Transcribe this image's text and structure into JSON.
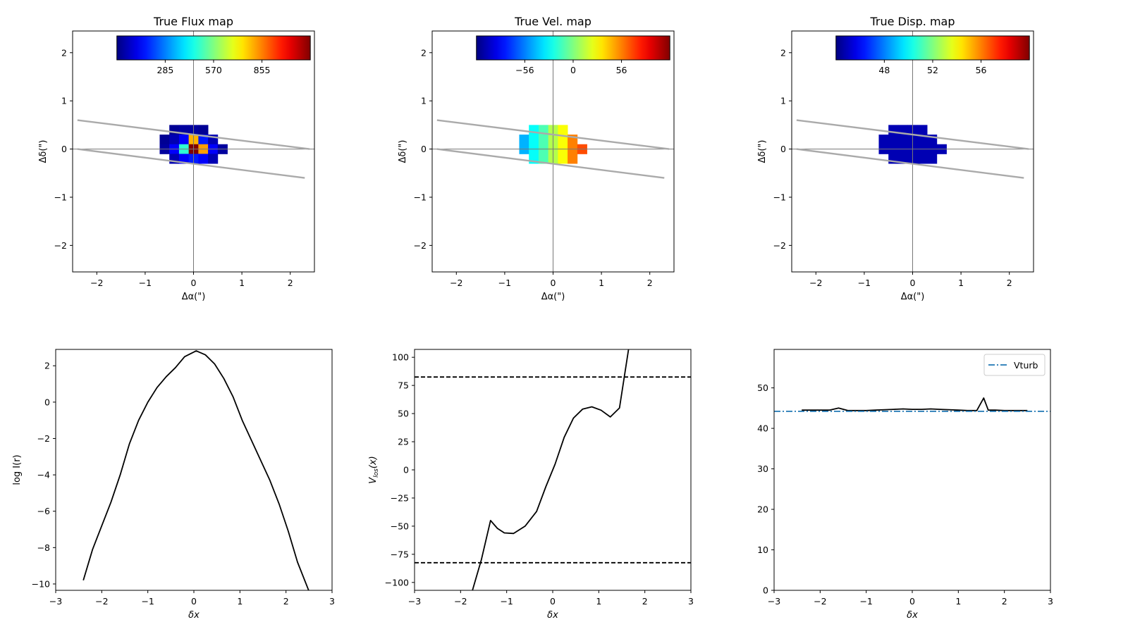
{
  "chart_data": [
    {
      "type": "heatmap",
      "title": "True Flux map",
      "xlabel": "Δα(\")",
      "ylabel": "Δδ(\")",
      "xlim": [
        -2.5,
        2.5
      ],
      "ylim": [
        -2.55,
        2.45
      ],
      "xticks": [
        -2,
        -1,
        0,
        1,
        2
      ],
      "yticks": [
        -2,
        -1,
        0,
        1,
        2
      ],
      "colorbar": {
        "ticks": [
          "285",
          "570",
          "855"
        ],
        "tick_positions": [
          0.25,
          0.5,
          0.75
        ],
        "colormap": "jet"
      },
      "slit_lines": [
        [
          [
            -2.4,
            0.6
          ],
          [
            2.4,
            0.0
          ]
        ],
        [
          [
            -2.4,
            0.0
          ],
          [
            2.3,
            -0.6
          ]
        ]
      ],
      "pixel_size": 0.2,
      "cells": [
        [
          -0.4,
          0.4,
          0.02
        ],
        [
          -0.2,
          0.4,
          0.03
        ],
        [
          0.0,
          0.4,
          0.03
        ],
        [
          0.2,
          0.4,
          0.02
        ],
        [
          -0.6,
          0.2,
          0.02
        ],
        [
          -0.4,
          0.2,
          0.05
        ],
        [
          -0.2,
          0.2,
          0.12
        ],
        [
          0.0,
          0.2,
          0.7
        ],
        [
          0.2,
          0.2,
          0.15
        ],
        [
          0.4,
          0.2,
          0.05
        ],
        [
          -0.6,
          0.0,
          0.03
        ],
        [
          -0.4,
          0.0,
          0.12
        ],
        [
          -0.2,
          0.0,
          0.42
        ],
        [
          0.0,
          0.0,
          1.0
        ],
        [
          0.2,
          0.0,
          0.72
        ],
        [
          0.4,
          0.0,
          0.12
        ],
        [
          0.6,
          0.0,
          0.03
        ],
        [
          -0.4,
          -0.2,
          0.05
        ],
        [
          -0.2,
          -0.2,
          0.12
        ],
        [
          0.0,
          -0.2,
          0.15
        ],
        [
          0.2,
          -0.2,
          0.12
        ],
        [
          0.4,
          -0.2,
          0.05
        ]
      ]
    },
    {
      "type": "heatmap",
      "title": "True Vel. map",
      "xlabel": "Δα(\")",
      "ylabel": "Δδ(\")",
      "xlim": [
        -2.5,
        2.5
      ],
      "ylim": [
        -2.55,
        2.45
      ],
      "xticks": [
        -2,
        -1,
        0,
        1,
        2
      ],
      "yticks": [
        -2,
        -1,
        0,
        1,
        2
      ],
      "colorbar": {
        "ticks": [
          "−56",
          "0",
          "56"
        ],
        "tick_positions": [
          0.25,
          0.5,
          0.75
        ],
        "colormap": "jet"
      },
      "slit_lines": [
        [
          [
            -2.4,
            0.6
          ],
          [
            2.4,
            0.0
          ]
        ],
        [
          [
            -2.4,
            0.0
          ],
          [
            2.3,
            -0.6
          ]
        ]
      ],
      "pixel_size": 0.2,
      "cells": [
        [
          -0.4,
          0.4,
          0.38
        ],
        [
          -0.2,
          0.4,
          0.45
        ],
        [
          0.0,
          0.4,
          0.55
        ],
        [
          0.2,
          0.4,
          0.62
        ],
        [
          -0.6,
          0.2,
          0.3
        ],
        [
          -0.4,
          0.2,
          0.38
        ],
        [
          -0.2,
          0.2,
          0.45
        ],
        [
          0.0,
          0.2,
          0.55
        ],
        [
          0.2,
          0.2,
          0.62
        ],
        [
          0.4,
          0.2,
          0.75
        ],
        [
          -0.6,
          0.0,
          0.3
        ],
        [
          -0.4,
          0.0,
          0.38
        ],
        [
          -0.2,
          0.0,
          0.45
        ],
        [
          0.0,
          0.0,
          0.55
        ],
        [
          0.2,
          0.0,
          0.62
        ],
        [
          0.4,
          0.0,
          0.75
        ],
        [
          0.6,
          0.0,
          0.8
        ],
        [
          -0.4,
          -0.2,
          0.38
        ],
        [
          -0.2,
          -0.2,
          0.45
        ],
        [
          0.0,
          -0.2,
          0.55
        ],
        [
          0.2,
          -0.2,
          0.62
        ],
        [
          0.4,
          -0.2,
          0.75
        ]
      ]
    },
    {
      "type": "heatmap",
      "title": "True Disp. map",
      "xlabel": "Δα(\")",
      "ylabel": "Δδ(\")",
      "xlim": [
        -2.5,
        2.5
      ],
      "ylim": [
        -2.55,
        2.45
      ],
      "xticks": [
        -2,
        -1,
        0,
        1,
        2
      ],
      "yticks": [
        -2,
        -1,
        0,
        1,
        2
      ],
      "colorbar": {
        "ticks": [
          "48",
          "52",
          "56"
        ],
        "tick_positions": [
          0.25,
          0.5,
          0.75
        ],
        "colormap": "jet"
      },
      "slit_lines": [
        [
          [
            -2.4,
            0.6
          ],
          [
            2.4,
            0.0
          ]
        ],
        [
          [
            -2.4,
            0.0
          ],
          [
            2.3,
            -0.6
          ]
        ]
      ],
      "pixel_size": 0.2,
      "cells": [
        [
          -0.4,
          0.4,
          0.05
        ],
        [
          -0.2,
          0.4,
          0.05
        ],
        [
          0.0,
          0.4,
          0.05
        ],
        [
          0.2,
          0.4,
          0.05
        ],
        [
          -0.6,
          0.2,
          0.05
        ],
        [
          -0.4,
          0.2,
          0.05
        ],
        [
          -0.2,
          0.2,
          0.05
        ],
        [
          0.0,
          0.2,
          0.05
        ],
        [
          0.2,
          0.2,
          0.05
        ],
        [
          0.4,
          0.2,
          0.05
        ],
        [
          -0.6,
          0.0,
          0.05
        ],
        [
          -0.4,
          0.0,
          0.05
        ],
        [
          -0.2,
          0.0,
          0.05
        ],
        [
          0.0,
          0.0,
          0.05
        ],
        [
          0.2,
          0.0,
          0.05
        ],
        [
          0.4,
          0.0,
          0.05
        ],
        [
          0.6,
          0.0,
          0.05
        ],
        [
          -0.4,
          -0.2,
          0.05
        ],
        [
          -0.2,
          -0.2,
          0.05
        ],
        [
          0.0,
          -0.2,
          0.05
        ],
        [
          0.2,
          -0.2,
          0.05
        ],
        [
          0.4,
          -0.2,
          0.05
        ]
      ]
    },
    {
      "type": "line",
      "title": "",
      "xlabel": "δx",
      "ylabel": "log I(r)",
      "xlim": [
        -3,
        3
      ],
      "ylim": [
        -10.35,
        2.9
      ],
      "xticks": [
        -3,
        -2,
        -1,
        0,
        1,
        2,
        3
      ],
      "yticks": [
        -10,
        -8,
        -6,
        -4,
        -2,
        0,
        2
      ],
      "series": [
        {
          "x": [
            -2.4,
            -2.2,
            -2.0,
            -1.8,
            -1.6,
            -1.4,
            -1.2,
            -1.0,
            -0.8,
            -0.6,
            -0.4,
            -0.2,
            0.05,
            0.25,
            0.45,
            0.65,
            0.85,
            1.05,
            1.25,
            1.45,
            1.65,
            1.85,
            2.05,
            2.25,
            2.5
          ],
          "y": [
            -9.8,
            -8.1,
            -6.8,
            -5.5,
            -4.0,
            -2.3,
            -1.0,
            0.0,
            0.8,
            1.4,
            1.9,
            2.5,
            2.82,
            2.6,
            2.1,
            1.3,
            0.3,
            -1.0,
            -2.1,
            -3.2,
            -4.3,
            -5.6,
            -7.1,
            -8.8,
            -10.4
          ],
          "color": "#000000",
          "style": "solid"
        }
      ]
    },
    {
      "type": "line",
      "title": "",
      "xlabel": "δx",
      "ylabel": "V_los(x)",
      "xlim": [
        -3,
        3
      ],
      "ylim": [
        -107,
        107
      ],
      "xticks": [
        -3,
        -2,
        -1,
        0,
        1,
        2,
        3
      ],
      "yticks": [
        -100,
        -75,
        -50,
        -25,
        0,
        25,
        50,
        75,
        100
      ],
      "ytick_labels": [
        "−100",
        "−75",
        "−50",
        "−25",
        "0",
        "25",
        "50",
        "75",
        "100"
      ],
      "series": [
        {
          "x": [
            -1.75,
            -1.55,
            -1.35,
            -1.2,
            -1.05,
            -0.85,
            -0.6,
            -0.35,
            -0.15,
            0.05,
            0.25,
            0.45,
            0.65,
            0.85,
            1.05,
            1.25,
            1.45,
            1.65
          ],
          "y": [
            -108,
            -80,
            -45,
            -52,
            -56,
            -56.5,
            -50,
            -37,
            -15,
            5,
            29,
            46,
            54,
            56,
            53,
            47,
            55,
            108
          ],
          "color": "#000000",
          "style": "solid"
        },
        {
          "x": [
            -3,
            3
          ],
          "y": [
            82.5,
            82.5
          ],
          "color": "#000000",
          "style": "dashed"
        },
        {
          "x": [
            -3,
            3
          ],
          "y": [
            -82.5,
            -82.5
          ],
          "color": "#000000",
          "style": "dashed"
        }
      ]
    },
    {
      "type": "line",
      "title": "",
      "xlabel": "δx",
      "ylabel": "",
      "xlim": [
        -3,
        3
      ],
      "ylim": [
        0,
        59.5
      ],
      "xticks": [
        -3,
        -2,
        -1,
        0,
        1,
        2,
        3
      ],
      "yticks": [
        0,
        10,
        20,
        30,
        40,
        50
      ],
      "legend": {
        "position": "top-right",
        "entries": [
          "Vturb"
        ]
      },
      "series": [
        {
          "x": [
            -2.4,
            -2.2,
            -2.0,
            -1.8,
            -1.6,
            -1.4,
            -1.2,
            -1.0,
            -0.8,
            -0.6,
            -0.4,
            -0.2,
            0.0,
            0.2,
            0.4,
            0.6,
            0.8,
            1.0,
            1.2,
            1.4,
            1.55,
            1.65,
            1.8,
            2.0,
            2.2,
            2.5
          ],
          "y": [
            44.5,
            44.5,
            44.5,
            44.5,
            45.0,
            44.4,
            44.4,
            44.4,
            44.5,
            44.6,
            44.7,
            44.8,
            44.7,
            44.7,
            44.8,
            44.7,
            44.6,
            44.5,
            44.4,
            44.4,
            47.5,
            44.5,
            44.5,
            44.4,
            44.4,
            44.4
          ],
          "color": "#000000",
          "style": "solid"
        },
        {
          "name": "Vturb",
          "x": [
            -3,
            3
          ],
          "y": [
            44.2,
            44.2
          ],
          "color": "#1f77b4",
          "style": "dashdot"
        }
      ]
    }
  ]
}
